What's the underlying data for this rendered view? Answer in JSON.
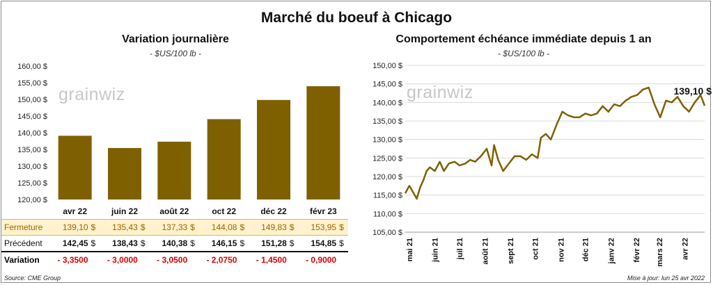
{
  "title": "Marché du boeuf à Chicago",
  "source": "Source: CME Group",
  "updated": "Mise à jour: lun 25 avr 2022",
  "left_panel": {
    "title": "Variation  journalière",
    "unit": "- $US/100 lb -",
    "watermark": "grainwiz"
  },
  "right_panel": {
    "title": "Comportement  échéance immédiate depuis 1 an",
    "unit": "- $US/100 lb -",
    "watermark": "grainwiz"
  },
  "table": {
    "rows": [
      {
        "label": "Fermeture",
        "values": [
          "139,10",
          "135,43",
          "137,33",
          "144,08",
          "149,83",
          "153,95"
        ]
      },
      {
        "label": "Précédent",
        "values": [
          "142,45",
          "138,43",
          "140,38",
          "146,15",
          "151,28",
          "154,85"
        ]
      },
      {
        "label": "Variation",
        "values": [
          "- 3,3500",
          "- 3,0000",
          "- 3,0500",
          "- 2,0750",
          "- 1,4500",
          "- 0,9000"
        ]
      }
    ],
    "currency": "$"
  },
  "chart_data": [
    {
      "type": "bar",
      "categories": [
        "avr 22",
        "juin 22",
        "août 22",
        "oct 22",
        "déc 22",
        "févr 23"
      ],
      "values": [
        139.1,
        135.43,
        137.33,
        144.08,
        149.83,
        153.95
      ],
      "ylim": [
        120,
        160
      ],
      "yticks": [
        120,
        125,
        130,
        135,
        140,
        145,
        150,
        155,
        160
      ],
      "ytick_labels": [
        "120,00 $",
        "125,00 $",
        "130,00 $",
        "135,00 $",
        "140,00 $",
        "145,00 $",
        "150,00 $",
        "155,00 $",
        "160,00 $"
      ],
      "color": "#7f6000",
      "grid": false
    },
    {
      "type": "line",
      "color": "#7f6000",
      "ylim": [
        105,
        150
      ],
      "yticks": [
        105,
        110,
        115,
        120,
        125,
        130,
        135,
        140,
        145,
        150
      ],
      "ytick_labels": [
        "105,00 $",
        "110,00 $",
        "115,00 $",
        "120,00 $",
        "125,00 $",
        "130,00 $",
        "135,00 $",
        "140,00 $",
        "145,00 $",
        "150,00 $"
      ],
      "xlim": [
        "2021-04-26",
        "2022-04-25"
      ],
      "xticks": [
        "2021-05-01",
        "2021-06-01",
        "2021-07-01",
        "2021-08-01",
        "2021-09-01",
        "2021-10-01",
        "2021-11-01",
        "2021-12-01",
        "2022-01-01",
        "2022-02-01",
        "2022-03-01",
        "2022-04-01"
      ],
      "xtick_labels": [
        "mai 21",
        "juin 21",
        "juil 21",
        "août 21",
        "sept 21",
        "oct 21",
        "nov 21",
        "déc 21",
        "janv 22",
        "févr 22",
        "mars 22",
        "avr 22"
      ],
      "last_value_label": "139,10 $",
      "grid": true,
      "x": [
        "2021-04-26",
        "2021-05-01",
        "2021-05-05",
        "2021-05-10",
        "2021-05-14",
        "2021-05-18",
        "2021-05-22",
        "2021-05-26",
        "2021-06-01",
        "2021-06-07",
        "2021-06-12",
        "2021-06-18",
        "2021-06-25",
        "2021-07-01",
        "2021-07-08",
        "2021-07-14",
        "2021-07-20",
        "2021-07-27",
        "2021-08-03",
        "2021-08-09",
        "2021-08-12",
        "2021-08-17",
        "2021-08-23",
        "2021-08-30",
        "2021-09-06",
        "2021-09-13",
        "2021-09-20",
        "2021-09-27",
        "2021-10-04",
        "2021-10-08",
        "2021-10-14",
        "2021-10-20",
        "2021-10-27",
        "2021-11-03",
        "2021-11-10",
        "2021-11-17",
        "2021-11-24",
        "2021-12-01",
        "2021-12-08",
        "2021-12-15",
        "2021-12-22",
        "2021-12-29",
        "2022-01-05",
        "2022-01-12",
        "2022-01-19",
        "2022-01-26",
        "2022-02-02",
        "2022-02-09",
        "2022-02-16",
        "2022-02-23",
        "2022-03-02",
        "2022-03-09",
        "2022-03-16",
        "2022-03-23",
        "2022-03-30",
        "2022-04-06",
        "2022-04-13",
        "2022-04-20",
        "2022-04-25"
      ],
      "y": [
        115.5,
        117.5,
        116.0,
        114.0,
        117.0,
        119.0,
        121.5,
        122.5,
        121.5,
        124.0,
        121.5,
        123.5,
        124.0,
        123.0,
        123.5,
        124.5,
        124.0,
        125.5,
        127.5,
        123.0,
        128.5,
        124.5,
        121.5,
        123.5,
        125.5,
        125.5,
        124.5,
        126.0,
        125.0,
        130.5,
        131.5,
        130.0,
        134.0,
        137.5,
        136.5,
        136.0,
        136.0,
        137.0,
        136.5,
        137.0,
        139.0,
        137.5,
        139.5,
        139.0,
        140.5,
        141.5,
        142.0,
        143.5,
        144.0,
        139.5,
        136.0,
        140.5,
        140.0,
        141.5,
        139.0,
        137.5,
        140.0,
        142.0,
        139.1
      ]
    }
  ]
}
